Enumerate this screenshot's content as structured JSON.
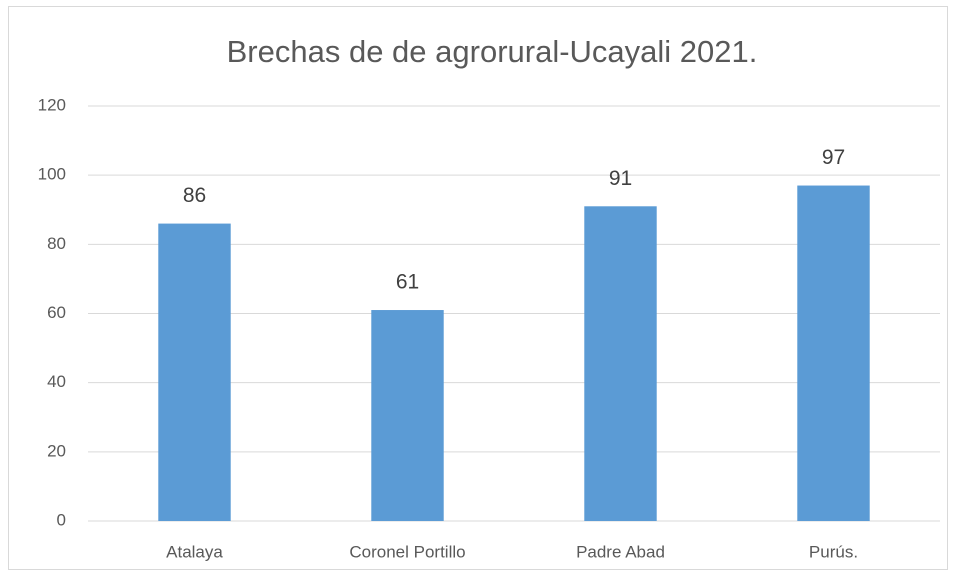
{
  "chart_data": {
    "type": "bar",
    "title": "Brechas de de agrorural-Ucayali 2021.",
    "categories": [
      "Atalaya",
      "Coronel Portillo",
      "Padre Abad",
      "Purús."
    ],
    "values": [
      86,
      61,
      91,
      97
    ],
    "color": "#5b9bd5",
    "ylim": [
      0,
      120
    ],
    "yticks": [
      0,
      20,
      40,
      60,
      80,
      100,
      120
    ],
    "grid": true,
    "data_labels": true
  }
}
